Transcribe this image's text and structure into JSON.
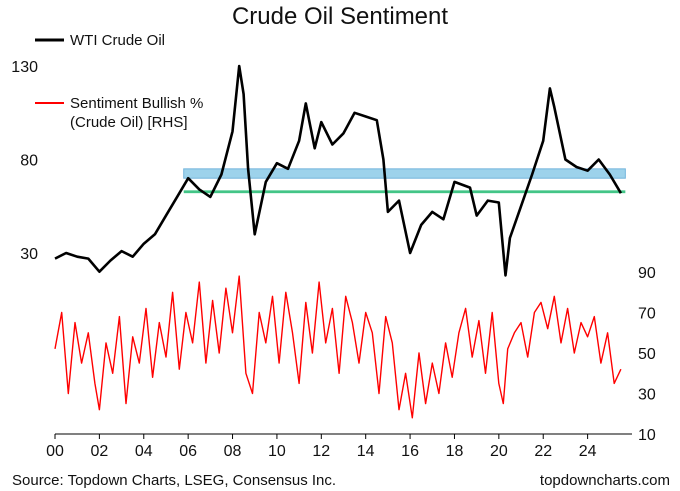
{
  "chart_data": [
    {
      "type": "line",
      "title": "Crude Oil Sentiment",
      "legend": "top-left",
      "ylim": [
        30,
        130
      ],
      "yticks": [
        "130",
        "80",
        "30"
      ],
      "annotations": [
        "shaded horizontal band around 70–75",
        "horizontal green band around 62–63"
      ],
      "series": [
        {
          "name": "WTI Crude Oil",
          "color": "#000000",
          "x": [
            2000.0,
            2000.5,
            2001.0,
            2001.5,
            2002.0,
            2002.5,
            2003.0,
            2003.5,
            2004.0,
            2004.5,
            2005.0,
            2005.5,
            2006.0,
            2006.5,
            2007.0,
            2007.5,
            2008.0,
            2008.3,
            2008.5,
            2008.7,
            2009.0,
            2009.5,
            2010.0,
            2010.5,
            2011.0,
            2011.3,
            2011.7,
            2012.0,
            2012.5,
            2013.0,
            2013.5,
            2014.0,
            2014.5,
            2014.8,
            2015.0,
            2015.5,
            2016.0,
            2016.5,
            2017.0,
            2017.5,
            2018.0,
            2018.7,
            2019.0,
            2019.5,
            2020.0,
            2020.3,
            2020.5,
            2021.0,
            2021.5,
            2022.0,
            2022.3,
            2022.5,
            2023.0,
            2023.5,
            2024.0,
            2024.5,
            2025.0,
            2025.5
          ],
          "y": [
            27,
            30,
            28,
            27,
            20,
            26,
            31,
            28,
            35,
            40,
            50,
            60,
            70,
            64,
            60,
            72,
            95,
            130,
            115,
            75,
            40,
            68,
            78,
            75,
            90,
            110,
            86,
            100,
            88,
            94,
            105,
            103,
            101,
            80,
            52,
            58,
            30,
            45,
            52,
            48,
            68,
            65,
            50,
            58,
            57,
            18,
            38,
            55,
            72,
            90,
            118,
            108,
            80,
            76,
            74,
            80,
            72,
            62
          ]
        },
        {
          "name": "Sentiment Bullish % (Crude Oil) [RHS]",
          "color": "#ff0000",
          "x": [
            2000.0,
            2000.3,
            2000.6,
            2000.9,
            2001.2,
            2001.5,
            2001.8,
            2002.0,
            2002.3,
            2002.6,
            2002.9,
            2003.2,
            2003.5,
            2003.8,
            2004.1,
            2004.4,
            2004.7,
            2005.0,
            2005.3,
            2005.6,
            2005.9,
            2006.2,
            2006.5,
            2006.8,
            2007.1,
            2007.4,
            2007.7,
            2008.0,
            2008.3,
            2008.6,
            2008.9,
            2009.2,
            2009.5,
            2009.8,
            2010.1,
            2010.4,
            2010.7,
            2011.0,
            2011.3,
            2011.6,
            2011.9,
            2012.2,
            2012.5,
            2012.8,
            2013.1,
            2013.4,
            2013.7,
            2014.0,
            2014.3,
            2014.6,
            2014.9,
            2015.2,
            2015.5,
            2015.8,
            2016.1,
            2016.4,
            2016.7,
            2017.0,
            2017.3,
            2017.6,
            2017.9,
            2018.2,
            2018.5,
            2018.8,
            2019.1,
            2019.4,
            2019.7,
            2020.0,
            2020.2,
            2020.4,
            2020.7,
            2021.0,
            2021.3,
            2021.6,
            2021.9,
            2022.2,
            2022.5,
            2022.8,
            2023.1,
            2023.4,
            2023.7,
            2024.0,
            2024.3,
            2024.6,
            2024.9,
            2025.2,
            2025.5
          ],
          "y": [
            52,
            70,
            30,
            65,
            45,
            60,
            35,
            22,
            55,
            40,
            68,
            25,
            58,
            45,
            72,
            38,
            65,
            48,
            80,
            42,
            70,
            55,
            85,
            45,
            76,
            50,
            82,
            60,
            88,
            40,
            30,
            70,
            55,
            78,
            45,
            80,
            60,
            35,
            75,
            50,
            85,
            55,
            72,
            40,
            78,
            65,
            45,
            70,
            60,
            30,
            68,
            55,
            22,
            40,
            18,
            50,
            25,
            45,
            30,
            55,
            38,
            60,
            72,
            48,
            66,
            40,
            70,
            35,
            25,
            52,
            60,
            65,
            48,
            70,
            75,
            62,
            78,
            55,
            72,
            50,
            65,
            58,
            68,
            45,
            60,
            35,
            42
          ]
        }
      ]
    },
    {
      "type": "line",
      "legend": "none",
      "ylim": [
        10,
        90
      ],
      "yticks": [
        "90",
        "70",
        "50",
        "30",
        "10"
      ]
    }
  ],
  "x_axis": {
    "range": [
      2000,
      2026
    ],
    "ticks": [
      {
        "year": 2000,
        "label": "00"
      },
      {
        "year": 2002,
        "label": "02"
      },
      {
        "year": 2004,
        "label": "04"
      },
      {
        "year": 2006,
        "label": "06"
      },
      {
        "year": 2008,
        "label": "08"
      },
      {
        "year": 2010,
        "label": "10"
      },
      {
        "year": 2012,
        "label": "12"
      },
      {
        "year": 2014,
        "label": "14"
      },
      {
        "year": 2016,
        "label": "16"
      },
      {
        "year": 2018,
        "label": "18"
      },
      {
        "year": 2020,
        "label": "20"
      },
      {
        "year": 2022,
        "label": "22"
      },
      {
        "year": 2024,
        "label": "24"
      }
    ]
  },
  "legend": {
    "wti": "WTI Crude Oil",
    "sentiment_line1": "Sentiment Bullish %",
    "sentiment_line2": "(Crude Oil) [RHS]"
  },
  "bands": {
    "blue": {
      "from": 70,
      "to": 75,
      "color": "#8ccbe8"
    },
    "green": {
      "from": 62,
      "to": 63.5,
      "color": "#2fbf7a"
    }
  },
  "footer": {
    "source": "Source: Topdown Charts, LSEG, Consensus Inc.",
    "brand": "topdowncharts.com"
  }
}
